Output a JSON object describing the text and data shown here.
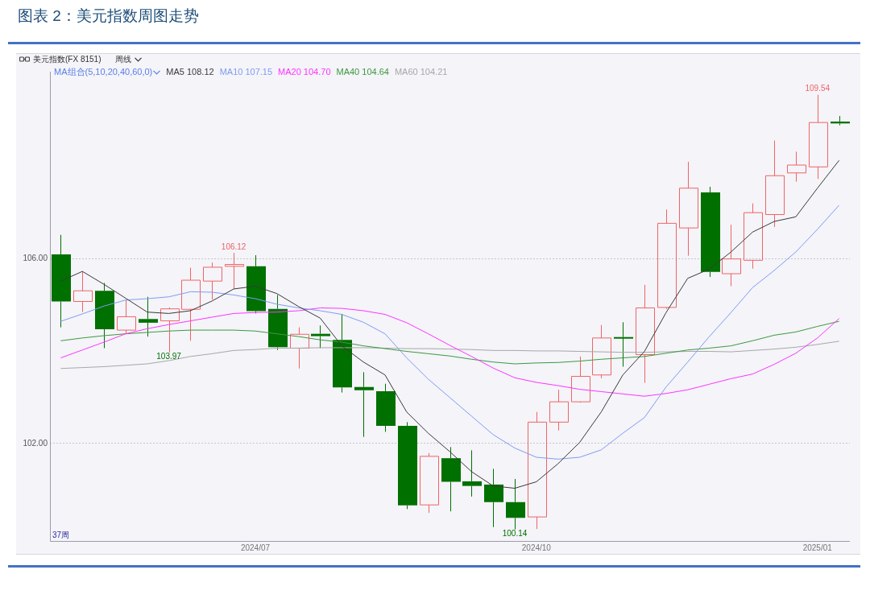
{
  "chart_data": {
    "type": "candlestick",
    "title": "图表 2：美元指数周图走势",
    "subtitle": "美元指数(FX 8151)",
    "legend_title": "MA组合(5,10,20,40,60,0)",
    "categories": [
      null,
      null,
      null,
      null,
      null,
      null,
      null,
      null,
      null,
      "2024/07",
      null,
      null,
      null,
      null,
      null,
      null,
      null,
      null,
      null,
      null,
      null,
      null,
      "2024/10",
      null,
      null,
      null,
      null,
      null,
      null,
      null,
      null,
      null,
      null,
      null,
      null,
      "2025/01",
      null
    ],
    "ohlc": [
      [
        106.09,
        106.51,
        104.51,
        105.07
      ],
      [
        105.07,
        105.72,
        104.84,
        105.3
      ],
      [
        105.3,
        105.47,
        104.06,
        104.47
      ],
      [
        104.45,
        105.11,
        104.37,
        104.74
      ],
      [
        104.69,
        105.17,
        104.31,
        104.61
      ],
      [
        104.65,
        104.94,
        103.97,
        104.91
      ],
      [
        104.9,
        105.8,
        104.22,
        105.53
      ],
      [
        105.51,
        105.91,
        105.11,
        105.81
      ],
      [
        105.83,
        106.12,
        105.34,
        105.87
      ],
      [
        105.83,
        106.07,
        104.81,
        104.86
      ],
      [
        104.91,
        105.21,
        104.02,
        104.08
      ],
      [
        104.06,
        104.51,
        103.62,
        104.36
      ],
      [
        104.37,
        104.55,
        104.06,
        104.32
      ],
      [
        104.24,
        104.8,
        103.1,
        103.21
      ],
      [
        103.22,
        103.54,
        102.14,
        103.15
      ],
      [
        103.13,
        103.29,
        102.25,
        102.38
      ],
      [
        102.38,
        102.46,
        100.58,
        100.66
      ],
      [
        100.67,
        101.79,
        100.5,
        101.72
      ],
      [
        101.68,
        101.92,
        100.53,
        101.17
      ],
      [
        101.18,
        101.85,
        100.85,
        101.08
      ],
      [
        101.11,
        101.45,
        100.19,
        100.73
      ],
      [
        100.73,
        101.23,
        100.14,
        100.39
      ],
      [
        100.41,
        102.68,
        100.15,
        102.46
      ],
      [
        102.46,
        103.16,
        102.28,
        102.9
      ],
      [
        102.9,
        103.88,
        102.88,
        103.45
      ],
      [
        103.48,
        104.56,
        103.41,
        104.28
      ],
      [
        104.3,
        104.62,
        103.66,
        104.28
      ],
      [
        103.92,
        105.43,
        103.31,
        104.93
      ],
      [
        104.94,
        107.06,
        104.91,
        106.76
      ],
      [
        106.66,
        108.09,
        106.06,
        107.52
      ],
      [
        107.43,
        107.55,
        105.6,
        105.71
      ],
      [
        105.67,
        106.73,
        105.4,
        105.99
      ],
      [
        105.96,
        107.19,
        105.78,
        106.99
      ],
      [
        106.95,
        108.55,
        106.68,
        107.79
      ],
      [
        107.85,
        108.31,
        107.66,
        108.02
      ],
      [
        107.98,
        109.54,
        107.72,
        108.94
      ],
      [
        108.96,
        109.08,
        108.88,
        108.92
      ]
    ],
    "colors": [
      "#007000",
      "#f06464",
      "#007000",
      "#f06464",
      "#007000",
      "#f06464",
      "#f06464",
      "#f06464",
      "#f06464",
      "#007000",
      "#007000",
      "#f06464",
      "#007000",
      "#007000",
      "#007000",
      "#007000",
      "#007000",
      "#f06464",
      "#007000",
      "#007000",
      "#007000",
      "#007000",
      "#f06464",
      "#f06464",
      "#f06464",
      "#f06464",
      "#007000",
      "#f06464",
      "#f06464",
      "#f06464",
      "#007000",
      "#f06464",
      "#f06464",
      "#f06464",
      "#f06464",
      "#f06464",
      "#007000"
    ],
    "series": [
      {
        "type": "line",
        "name": "MA5 108.12",
        "color": "#3a3a3a",
        "values": [
          105.51,
          105.72,
          105.44,
          105.14,
          104.84,
          104.81,
          104.87,
          105.08,
          105.34,
          105.4,
          105.24,
          104.96,
          104.71,
          104.11,
          103.76,
          103.48,
          102.68,
          102.22,
          101.82,
          101.39,
          101.08,
          101.03,
          101.17,
          101.56,
          102.02,
          102.68,
          103.48,
          103.99,
          104.83,
          105.57,
          105.77,
          106.14,
          106.57,
          106.8,
          106.9,
          107.52,
          108.12
        ]
      },
      {
        "type": "line",
        "name": "MA10 107.15",
        "color": "#7f9cf0",
        "values": [
          104.64,
          104.8,
          104.97,
          105.1,
          105.13,
          105.17,
          105.28,
          105.27,
          105.21,
          105.13,
          105.01,
          104.93,
          104.87,
          104.79,
          104.62,
          104.37,
          103.85,
          103.39,
          102.99,
          102.59,
          102.19,
          101.9,
          101.7,
          101.66,
          101.7,
          101.86,
          102.22,
          102.56,
          103.22,
          103.76,
          104.31,
          104.83,
          105.37,
          105.74,
          106.14,
          106.63,
          107.15
        ]
      },
      {
        "type": "line",
        "name": "MA20 104.70",
        "color": "#ff33ff",
        "values": [
          103.85,
          104.02,
          104.19,
          104.37,
          104.48,
          104.57,
          104.65,
          104.73,
          104.81,
          104.83,
          104.84,
          104.87,
          104.93,
          104.92,
          104.87,
          104.79,
          104.61,
          104.37,
          104.12,
          103.88,
          103.63,
          103.42,
          103.32,
          103.25,
          103.17,
          103.12,
          103.07,
          103.02,
          103.08,
          103.16,
          103.28,
          103.4,
          103.5,
          103.71,
          103.95,
          104.28,
          104.7
        ]
      },
      {
        "type": "line",
        "name": "MA40 104.64",
        "color": "#3d993d",
        "values": [
          104.22,
          104.28,
          104.33,
          104.37,
          104.4,
          104.43,
          104.45,
          104.45,
          104.45,
          104.43,
          104.37,
          104.31,
          104.24,
          104.19,
          104.11,
          104.05,
          103.99,
          103.94,
          103.89,
          103.82,
          103.76,
          103.72,
          103.74,
          103.75,
          103.78,
          103.82,
          103.85,
          103.88,
          103.95,
          104.02,
          104.06,
          104.11,
          104.22,
          104.34,
          104.41,
          104.53,
          104.64
        ]
      },
      {
        "type": "line",
        "name": "MA60 104.21",
        "color": "#a8a8a8",
        "values": [
          103.62,
          103.64,
          103.66,
          103.69,
          103.72,
          103.79,
          103.88,
          103.94,
          104.01,
          104.03,
          104.06,
          104.06,
          104.07,
          104.07,
          104.07,
          104.06,
          104.05,
          104.05,
          104.04,
          104.03,
          104.01,
          104.01,
          104.0,
          104.0,
          103.99,
          103.98,
          103.97,
          103.97,
          103.98,
          103.99,
          103.99,
          103.98,
          104.01,
          104.04,
          104.08,
          104.14,
          104.21
        ]
      }
    ],
    "ylim": [
      99.89,
      110.04
    ],
    "yticks": [
      {
        "value": 102,
        "label": "102.00"
      },
      {
        "value": 106,
        "label": "106.00"
      }
    ],
    "grid": "y",
    "legend": "top left",
    "marker": "none",
    "annotations": [
      "周线",
      "37周",
      {
        "text": "106.12",
        "y": 106.12
      },
      {
        "text": "103.97",
        "y": 103.97
      },
      {
        "text": "109.54",
        "y": 109.54
      },
      {
        "text": "100.14",
        "y": 100.14
      }
    ]
  }
}
